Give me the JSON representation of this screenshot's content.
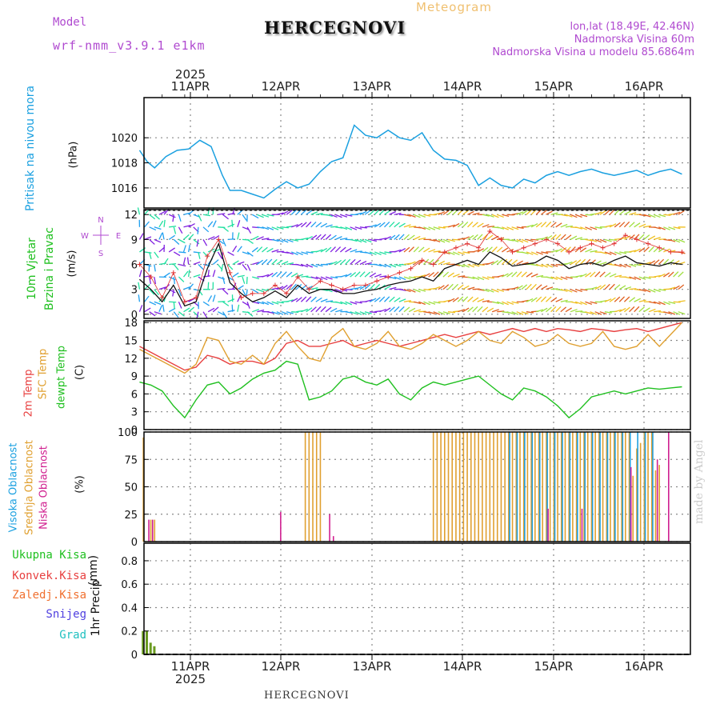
{
  "header": {
    "title": "HERCEGNOVI",
    "meteogram": "Meteogram",
    "model_label": "Model",
    "model_name": "wrf-nmm_v3.9.1 e1km",
    "lonlat": "lon,lat (18.49E, 42.46N)",
    "altitude": "Nadmorska Visina 60m",
    "model_altitude": "Nadmorska Visina u modelu 85.6864m"
  },
  "footer": {
    "station": "HERCEGNOVI",
    "credit": "made by Angel"
  },
  "colors": {
    "pressure": "#1aa0e0",
    "wind_speed": "#111111",
    "wind_gust": "#e03030",
    "temp_2m": "#e84040",
    "temp_sfc": "#e0a030",
    "dewpoint": "#20c020",
    "cloud_high": "#20a0e0",
    "cloud_mid": "#e0a030",
    "cloud_low": "#d02090",
    "precip": "#6a9a20"
  },
  "time_axis": {
    "year": "2025",
    "days": [
      "11APR",
      "12APR",
      "13APR",
      "14APR",
      "15APR",
      "16APR"
    ]
  },
  "panels": {
    "pressure": {
      "label1": "Pritisak na nivou mora",
      "label2": "(hPa)"
    },
    "wind": {
      "label1": "10m Vjetar",
      "label2": "Brzina i Pravac",
      "label3": "(m/s)",
      "compass": [
        "N",
        "W",
        "E",
        "S"
      ]
    },
    "temp": {
      "label1": "2m Temp",
      "label2": "SFC Temp",
      "label3": "dewpt Temp",
      "label4": "(C)"
    },
    "cloud": {
      "label1": "Visoka Oblacnost",
      "label2": "Srednja Oblacnost",
      "label3": "Niska Oblacnost",
      "label4": "(%)"
    },
    "precip": {
      "label1": "1hr Precip",
      "label2": "(mm)",
      "legend": [
        "Ukupna Kisa",
        "Konvek.Kisa",
        "Zaledj.Kisa",
        "Snijeg",
        "Grad"
      ]
    }
  },
  "chart_data": [
    {
      "type": "line",
      "title": "",
      "ylabel": "Pritisak na nivou mora (hPa)",
      "ylim": [
        1014.4,
        1023.2
      ],
      "yticks": [
        1016,
        1018,
        1020
      ],
      "x_hours": [
        0,
        2,
        4,
        7,
        10,
        13,
        16,
        19,
        22,
        24,
        27,
        30,
        33,
        36,
        39,
        42,
        45,
        48,
        51,
        54,
        57,
        60,
        63,
        66,
        69,
        72,
        75,
        78,
        81,
        84,
        87,
        90,
        93,
        96,
        99,
        102,
        105,
        108,
        111,
        114,
        117,
        120,
        123,
        126,
        129,
        132,
        135,
        138,
        141,
        144
      ],
      "series": [
        {
          "name": "",
          "values": [
            1019.0,
            1018.1,
            1017.6,
            1018.5,
            1019.0,
            1019.1,
            1019.8,
            1019.3,
            1017.0,
            1015.8,
            1015.8,
            1015.5,
            1015.2,
            1015.9,
            1016.5,
            1016.0,
            1016.3,
            1017.3,
            1018.1,
            1018.4,
            1021.0,
            1020.2,
            1020.0,
            1020.6,
            1020.0,
            1019.8,
            1020.4,
            1019.0,
            1018.3,
            1018.2,
            1017.8,
            1016.2,
            1016.8,
            1016.2,
            1016.0,
            1016.7,
            1016.4,
            1017.0,
            1017.3,
            1017.0,
            1017.3,
            1017.5,
            1017.2,
            1017.0,
            1017.2,
            1017.4,
            1017.0,
            1017.3,
            1017.5,
            1017.1
          ]
        }
      ]
    },
    {
      "type": "line",
      "title": "",
      "ylabel": "10m Vjetar Brzina i Pravac (m/s)",
      "ylim": [
        -0.5,
        12.6
      ],
      "yticks": [
        0,
        3,
        6,
        9,
        12
      ],
      "x_hours": [
        0,
        3,
        6,
        9,
        12,
        15,
        18,
        21,
        24,
        27,
        30,
        33,
        36,
        39,
        42,
        45,
        48,
        51,
        54,
        57,
        60,
        63,
        66,
        69,
        72,
        75,
        78,
        81,
        84,
        87,
        90,
        93,
        96,
        99,
        102,
        105,
        108,
        111,
        114,
        117,
        120,
        123,
        126,
        129,
        132,
        135,
        138,
        141,
        144
      ],
      "series": [
        {
          "name": "",
          "values": [
            4.2,
            3.0,
            1.5,
            3.5,
            1.0,
            1.5,
            5.5,
            8.5,
            3.8,
            2.5,
            1.5,
            2.0,
            2.8,
            2.0,
            3.5,
            2.5,
            3.0,
            3.0,
            2.5,
            2.5,
            2.8,
            3.0,
            3.5,
            3.8,
            4.0,
            4.5,
            4.0,
            5.5,
            6.0,
            6.5,
            6.0,
            7.5,
            6.8,
            5.8,
            6.0,
            6.2,
            7.0,
            6.5,
            5.5,
            6.0,
            6.2,
            5.8,
            6.5,
            7.0,
            6.2,
            6.0,
            5.8,
            6.2,
            6.0
          ]
        },
        {
          "name": "",
          "values": [
            6.0,
            4.5,
            2.0,
            5.0,
            1.5,
            2.0,
            7.0,
            9.0,
            5.0,
            2.0,
            2.5,
            2.5,
            3.5,
            2.5,
            4.5,
            3.0,
            4.0,
            3.5,
            3.0,
            3.5,
            3.5,
            4.0,
            4.5,
            5.0,
            5.5,
            6.5,
            6.0,
            7.5,
            8.0,
            8.5,
            8.0,
            10.0,
            9.0,
            7.5,
            8.0,
            8.5,
            9.0,
            8.5,
            7.5,
            8.0,
            8.5,
            8.0,
            8.5,
            9.5,
            9.0,
            8.5,
            8.0,
            7.5,
            7.5
          ]
        }
      ]
    },
    {
      "type": "line",
      "title": "",
      "ylabel": "Temp (C)",
      "ylim": [
        0,
        18.3
      ],
      "yticks": [
        0,
        3,
        6,
        9,
        12,
        15,
        18
      ],
      "x_hours": [
        0,
        3,
        6,
        9,
        12,
        15,
        18,
        21,
        24,
        27,
        30,
        33,
        36,
        39,
        42,
        45,
        48,
        51,
        54,
        57,
        60,
        63,
        66,
        69,
        72,
        75,
        78,
        81,
        84,
        87,
        90,
        93,
        96,
        99,
        102,
        105,
        108,
        111,
        114,
        117,
        120,
        123,
        126,
        129,
        132,
        135,
        138,
        141,
        144
      ],
      "series": [
        {
          "name": "2m Temp",
          "values": [
            14.0,
            13.0,
            12.0,
            11.0,
            10.0,
            10.5,
            12.5,
            12.0,
            11.0,
            11.5,
            11.5,
            11.0,
            12.0,
            14.5,
            15.0,
            14.0,
            14.0,
            14.5,
            15.0,
            14.0,
            14.5,
            15.0,
            14.5,
            14.0,
            14.5,
            15.0,
            15.5,
            16.0,
            15.5,
            16.0,
            16.5,
            16.0,
            16.5,
            17.0,
            16.5,
            17.0,
            16.5,
            17.0,
            16.8,
            16.5,
            17.0,
            16.8,
            16.5,
            16.8,
            17.0,
            16.5,
            17.0,
            17.5,
            18.0
          ]
        },
        {
          "name": "SFC Temp",
          "values": [
            13.5,
            12.5,
            11.5,
            10.5,
            9.5,
            11.0,
            15.5,
            15.0,
            11.5,
            11.0,
            12.5,
            11.0,
            14.5,
            16.5,
            14.0,
            12.0,
            11.5,
            15.5,
            17.0,
            14.0,
            13.5,
            14.5,
            16.5,
            14.0,
            13.5,
            14.5,
            16.0,
            15.0,
            14.0,
            15.0,
            16.5,
            15.0,
            14.5,
            16.5,
            15.5,
            14.0,
            14.5,
            16.0,
            14.5,
            14.0,
            14.5,
            16.5,
            14.0,
            13.5,
            14.0,
            16.0,
            14.0,
            16.0,
            18.0
          ]
        },
        {
          "name": "dewpt Temp",
          "values": [
            8.0,
            7.5,
            6.5,
            4.0,
            2.0,
            5.0,
            7.5,
            8.0,
            6.0,
            7.0,
            8.5,
            9.5,
            10.0,
            11.5,
            11.0,
            5.0,
            5.5,
            6.5,
            8.5,
            9.0,
            8.0,
            7.5,
            8.5,
            6.0,
            5.0,
            7.0,
            8.0,
            7.5,
            8.0,
            8.5,
            9.0,
            7.5,
            6.0,
            5.0,
            7.0,
            6.5,
            5.5,
            4.0,
            2.0,
            3.5,
            5.5,
            6.0,
            6.5,
            6.0,
            6.5,
            7.0,
            6.8,
            7.0,
            7.2
          ]
        }
      ]
    },
    {
      "type": "bar",
      "title": "",
      "ylabel": "Oblacnost (%)",
      "ylim": [
        0,
        100
      ],
      "yticks": [
        0,
        25,
        50,
        75,
        100
      ],
      "bars": [
        {
          "name": "Srednja Oblacnost",
          "x": [
            1,
            3,
            4,
            44,
            45,
            46,
            47,
            48,
            49,
            50,
            51,
            52,
            53,
            54,
            55,
            56,
            57,
            58,
            59,
            60,
            61,
            62,
            63,
            64,
            65,
            66,
            67,
            68,
            69,
            70,
            71,
            72,
            73,
            74,
            75,
            76,
            77,
            78,
            79,
            80,
            81,
            82,
            83,
            84,
            85,
            86,
            87,
            88,
            89,
            90,
            91,
            92,
            93,
            94,
            95,
            96,
            97,
            98,
            99,
            100,
            101,
            102,
            103,
            104,
            105,
            106,
            107,
            108,
            109,
            110,
            111,
            112,
            113,
            114,
            115,
            116,
            117,
            118,
            119,
            120,
            121,
            122,
            123,
            124,
            125,
            126,
            127,
            128,
            129,
            130,
            131,
            132,
            133,
            134,
            135,
            136,
            137,
            138,
            139
          ],
          "values": [
            95,
            20,
            20,
            100,
            100,
            100,
            100,
            100,
            0,
            0,
            0,
            0,
            0,
            0,
            0,
            0,
            0,
            0,
            0,
            0,
            0,
            0,
            0,
            0,
            0,
            0,
            0,
            0,
            0,
            0,
            0,
            0,
            0,
            0,
            0,
            0,
            0,
            100,
            100,
            100,
            100,
            100,
            100,
            100,
            100,
            100,
            100,
            100,
            100,
            100,
            100,
            100,
            100,
            100,
            100,
            100,
            100,
            100,
            100,
            100,
            100,
            100,
            100,
            100,
            100,
            100,
            100,
            100,
            100,
            100,
            100,
            100,
            100,
            100,
            100,
            100,
            100,
            100,
            100,
            100,
            100,
            100,
            100,
            100,
            100,
            100,
            100,
            100,
            100,
            100,
            60,
            85,
            90,
            100,
            100,
            100,
            65,
            70,
            0
          ]
        },
        {
          "name": "Visoka Oblacnost",
          "x": [
            98,
            100,
            102,
            104,
            106,
            108,
            110,
            112,
            114,
            116,
            118,
            120,
            122,
            124,
            126,
            128,
            130,
            132,
            134,
            136
          ],
          "values": [
            100,
            100,
            100,
            100,
            100,
            100,
            100,
            100,
            100,
            100,
            100,
            100,
            100,
            100,
            100,
            100,
            100,
            100,
            100,
            100
          ]
        },
        {
          "name": "Niska Oblacnost",
          "x": [
            2,
            3,
            37,
            50,
            51,
            108,
            117,
            130,
            137,
            140
          ],
          "values": [
            20,
            20,
            27,
            25,
            5,
            30,
            30,
            68,
            75,
            100
          ]
        }
      ]
    },
    {
      "type": "bar",
      "title": "",
      "ylabel": "1hr Precip (mm)",
      "ylim": [
        0,
        0.95
      ],
      "yticks": [
        0,
        0.2,
        0.4,
        0.6,
        0.8
      ],
      "bars": [
        {
          "name": "Ukupna Kisa",
          "x": [
            0.5,
            1.5,
            2.5,
            3.5
          ],
          "values": [
            0.2,
            0.2,
            0.1,
            0.07
          ]
        }
      ]
    }
  ]
}
